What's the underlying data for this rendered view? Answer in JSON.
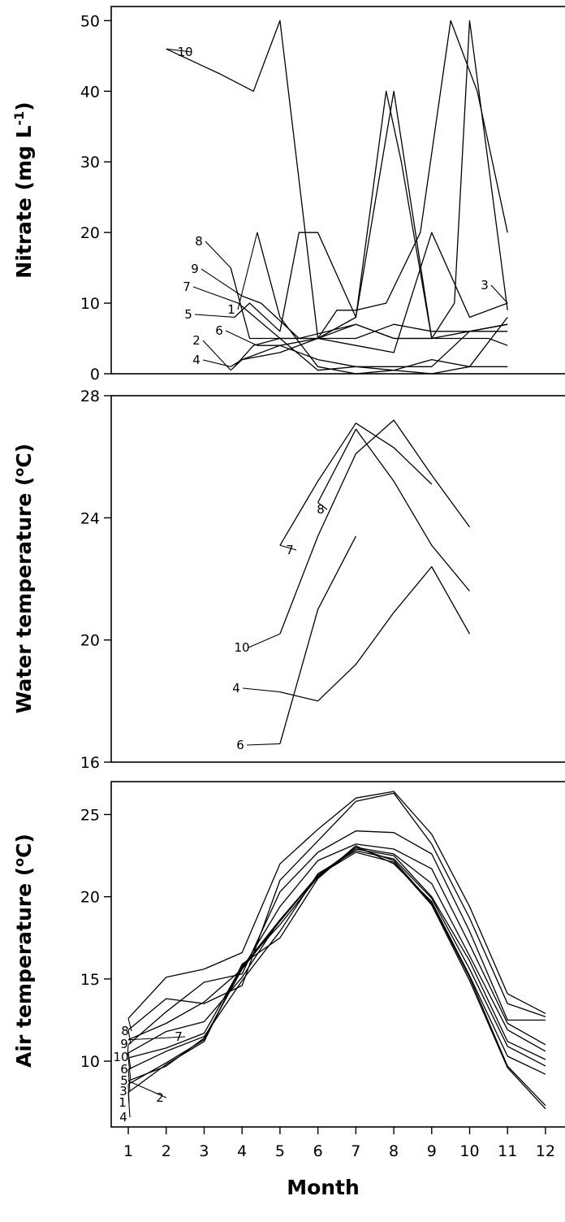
{
  "chart_data": [
    {
      "type": "line",
      "ylabel": "Nitrate (mg L",
      "ylabel_sup": "-1",
      "ylabel_end": ")",
      "ylim": [
        0,
        52
      ],
      "yticks": [
        0,
        10,
        20,
        30,
        40,
        50
      ],
      "xlim": [
        0.55,
        12.6
      ],
      "grid": false,
      "series": [
        {
          "name": "10",
          "x": [
            2,
            3.4,
            4.3,
            5,
            6,
            7,
            8,
            9
          ],
          "y": [
            46,
            42.5,
            40,
            50,
            5,
            8,
            40,
            5
          ]
        },
        {
          "name": "9",
          "x": [
            4,
            4.5,
            5.5,
            7,
            8,
            8.7,
            9.5,
            10.5,
            11
          ],
          "y": [
            11,
            10,
            5,
            7,
            5,
            5,
            5,
            5,
            4
          ]
        },
        {
          "name": "8",
          "x": [
            3.7,
            4.2,
            5,
            6,
            6.5,
            7,
            7.8,
            8.7,
            9.5,
            10.2,
            11
          ],
          "y": [
            15,
            5,
            5,
            5,
            9,
            9,
            10,
            20,
            50,
            40,
            20
          ]
        },
        {
          "name": "7",
          "x": [
            3.9,
            5,
            6,
            7,
            8,
            9,
            10,
            11
          ],
          "y": [
            10,
            5,
            0.5,
            1,
            1,
            1,
            6,
            7
          ]
        },
        {
          "name": "6",
          "x": [
            4.4,
            5,
            6,
            7,
            8,
            9,
            10,
            11
          ],
          "y": [
            4,
            4,
            5,
            5,
            7,
            6,
            6,
            6
          ]
        },
        {
          "name": "5",
          "x": [
            3.8,
            4.2,
            5,
            5.5,
            6,
            7,
            7.8,
            8.2,
            9,
            10,
            11
          ],
          "y": [
            8,
            10,
            6,
            20,
            20,
            8,
            40,
            30,
            5,
            6,
            7
          ]
        },
        {
          "name": "4",
          "x": [
            3.7,
            4,
            5,
            6,
            7,
            8,
            9,
            9.6,
            10,
            11
          ],
          "y": [
            1,
            2,
            3,
            5,
            7,
            5,
            5,
            10,
            50,
            9
          ]
        },
        {
          "name": "3",
          "x": [
            3.8,
            4.3,
            5,
            6,
            7,
            8,
            9,
            10,
            11
          ],
          "y": [
            1,
            4,
            5,
            5,
            4,
            3,
            20,
            8,
            10
          ]
        },
        {
          "name": "2",
          "x": [
            3.7,
            4,
            5,
            6,
            7,
            8,
            9,
            10,
            11
          ],
          "y": [
            0.5,
            2,
            4,
            2,
            1,
            0.5,
            2,
            1,
            1
          ]
        },
        {
          "name": "1",
          "x": [
            4.4,
            5,
            6,
            7,
            8,
            9,
            10,
            11
          ],
          "y": [
            20,
            8,
            1,
            0,
            0.5,
            0,
            1,
            8
          ]
        }
      ]
    },
    {
      "type": "line",
      "ylabel": "Water temperature (",
      "ylabel_sup": "o",
      "ylabel_end": "C)",
      "ylim": [
        16,
        28
      ],
      "yticks": [
        16,
        20,
        24,
        28
      ],
      "xlim": [
        0.55,
        12.6
      ],
      "grid": false,
      "series": [
        {
          "name": "10",
          "x": [
            5,
            6,
            7,
            8,
            9,
            10
          ],
          "y": [
            20.2,
            23.4,
            26.1,
            27.2,
            25.4,
            23.7
          ]
        },
        {
          "name": "8",
          "x": [
            6,
            7,
            8,
            9,
            10
          ],
          "y": [
            24.5,
            26.9,
            25.2,
            23.1,
            21.6
          ]
        },
        {
          "name": "7",
          "x": [
            5,
            6,
            7,
            8,
            9
          ],
          "y": [
            23.1,
            25.2,
            27.1,
            26.3,
            25.1
          ]
        },
        {
          "name": "6",
          "x": [
            5,
            6,
            7
          ],
          "y": [
            16.6,
            21.0,
            23.4
          ]
        },
        {
          "name": "4",
          "x": [
            5,
            6,
            7,
            8,
            9,
            10
          ],
          "y": [
            18.3,
            18.0,
            19.2,
            20.9,
            22.4,
            20.2
          ]
        }
      ]
    },
    {
      "type": "line",
      "ylabel": "Air temperature (",
      "ylabel_sup": "o",
      "ylabel_end": "C)",
      "ylim": [
        6,
        27
      ],
      "yticks": [
        10,
        15,
        20,
        25
      ],
      "xlim": [
        0.55,
        12.6
      ],
      "xticks": [
        1,
        2,
        3,
        4,
        5,
        6,
        7,
        8,
        9,
        10,
        11,
        12
      ],
      "xlabel": "Month",
      "grid": false,
      "series": [
        {
          "name": "8",
          "x": [
            1,
            2,
            3,
            4,
            5,
            6,
            7,
            8,
            9,
            10,
            11,
            12
          ],
          "y": [
            12.6,
            15.1,
            15.6,
            16.6,
            22.0,
            24.1,
            26.0,
            26.4,
            23.8,
            19.4,
            14.1,
            12.9
          ]
        },
        {
          "name": "9",
          "x": [
            1,
            2,
            3,
            4,
            5,
            6,
            7,
            8,
            9,
            10,
            11,
            12
          ],
          "y": [
            11.9,
            13.8,
            13.5,
            14.6,
            21.0,
            23.4,
            25.8,
            26.3,
            23.2,
            18.7,
            13.5,
            12.7
          ]
        },
        {
          "name": "10",
          "x": [
            1,
            2,
            3,
            4,
            5,
            6,
            7,
            8,
            9,
            10,
            11,
            12
          ],
          "y": [
            11.0,
            13.0,
            14.8,
            15.3,
            20.3,
            22.7,
            24.0,
            23.9,
            22.6,
            17.9,
            12.5,
            12.5
          ]
        },
        {
          "name": "7",
          "x": [
            1,
            2,
            3,
            4,
            5,
            6,
            7,
            8,
            9,
            10,
            11,
            12
          ],
          "y": [
            11.3,
            12.3,
            13.6,
            15.6,
            19.4,
            22.2,
            23.2,
            22.9,
            21.7,
            17.1,
            12.3,
            11.0
          ]
        },
        {
          "name": "6",
          "x": [
            1,
            2,
            3,
            4,
            5,
            6,
            7,
            8,
            9,
            10,
            11,
            12
          ],
          "y": [
            10.5,
            11.8,
            12.4,
            15.1,
            18.6,
            21.3,
            23.0,
            22.6,
            20.8,
            16.4,
            11.9,
            10.6
          ]
        },
        {
          "name": "5",
          "x": [
            1,
            2,
            3,
            4,
            5,
            6,
            7,
            8,
            9,
            10,
            11,
            12
          ],
          "y": [
            10.2,
            10.8,
            11.7,
            15.8,
            18.3,
            21.2,
            22.9,
            22.5,
            20.0,
            16.1,
            11.2,
            10.1
          ]
        },
        {
          "name": "3",
          "x": [
            1,
            2,
            3,
            4,
            5,
            6,
            7,
            8,
            9,
            10,
            11,
            12
          ],
          "y": [
            9.5,
            10.6,
            11.5,
            14.9,
            17.9,
            21.4,
            22.8,
            22.3,
            19.9,
            15.6,
            10.9,
            9.7
          ]
        },
        {
          "name": "4",
          "x": [
            1,
            2,
            3,
            4,
            5,
            6,
            7,
            8,
            9,
            10,
            11,
            12
          ],
          "y": [
            8.1,
            9.8,
            11.2,
            15.9,
            17.5,
            21.1,
            23.1,
            22.0,
            19.7,
            15.2,
            10.3,
            9.2
          ]
        },
        {
          "name": "1",
          "x": [
            1,
            2,
            3,
            4,
            5,
            6,
            7,
            8,
            9,
            10,
            11,
            12
          ],
          "y": [
            8.6,
            9.9,
            11.3,
            15.7,
            18.6,
            21.2,
            23.0,
            22.2,
            19.6,
            15.1,
            9.7,
            7.3
          ]
        },
        {
          "name": "2",
          "x": [
            1,
            2,
            3,
            4,
            5,
            6,
            7,
            8,
            9,
            10,
            11,
            12
          ],
          "y": [
            8.8,
            9.7,
            11.4,
            15.6,
            18.5,
            21.3,
            22.7,
            22.1,
            19.5,
            14.9,
            9.6,
            7.1
          ]
        }
      ]
    }
  ]
}
